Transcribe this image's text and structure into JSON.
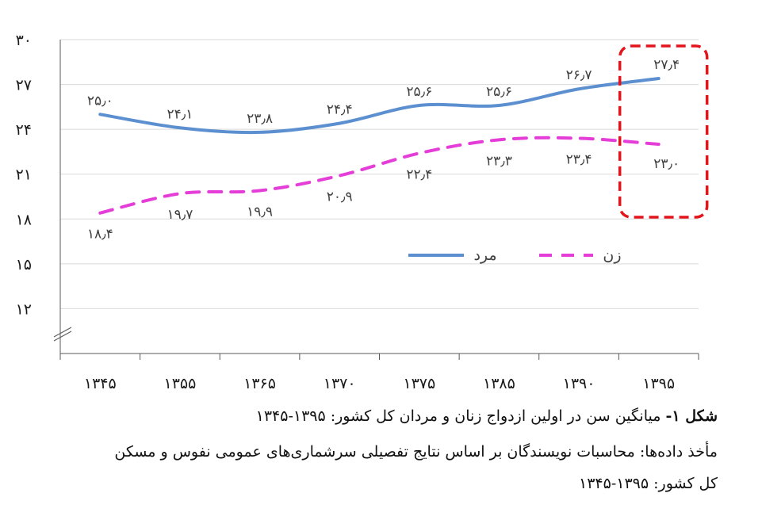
{
  "chart_data": {
    "type": "line",
    "categories": [
      "۱۳۴۵",
      "۱۳۵۵",
      "۱۳۶۵",
      "۱۳۷۰",
      "۱۳۷۵",
      "۱۳۸۵",
      "۱۳۹۰",
      "۱۳۹۵"
    ],
    "ylim": [
      12,
      30
    ],
    "yticks": [
      "۱۲",
      "۱۵",
      "۱۸",
      "۲۱",
      "۲۴",
      "۲۷",
      "۳۰"
    ],
    "ytick_values": [
      12,
      15,
      18,
      21,
      24,
      27,
      30
    ],
    "grid": true,
    "legend_position": "center-right",
    "highlight_category_index": 7,
    "series": [
      {
        "name": "مرد",
        "style": "solid",
        "color": "#5b8fd0",
        "values": [
          25.0,
          24.1,
          23.8,
          24.4,
          25.6,
          25.6,
          26.7,
          27.4
        ],
        "labels": [
          "۲۵٫۰",
          "۲۴٫۱",
          "۲۳٫۸",
          "۲۴٫۴",
          "۲۵٫۶",
          "۲۵٫۶",
          "۲۶٫۷",
          "۲۷٫۴"
        ]
      },
      {
        "name": "زن",
        "style": "dashed",
        "color": "#e53dd8",
        "values": [
          18.4,
          19.7,
          19.9,
          20.9,
          22.4,
          23.3,
          23.4,
          23.0
        ],
        "labels": [
          "۱۸٫۴",
          "۱۹٫۷",
          "۱۹٫۹",
          "۲۰٫۹",
          "۲۲٫۴",
          "۲۳٫۳",
          "۲۳٫۴",
          "۲۳٫۰"
        ]
      }
    ],
    "highlight_color": "#e3141b"
  },
  "caption": {
    "figure_label": "شکل ۱-",
    "title": "میانگین سن در اولین ازدواج زنان و مردان کل کشور: ۱۳۹۵-۱۳۴۵",
    "source_line1": "مأخذ داده‌ها: محاسبات نویسندگان بر اساس نتایج تفصیلی سرشماری‌های عمومی نفوس و مسکن",
    "source_line2": "کل کشور: ۱۳۹۵-۱۳۴۵"
  }
}
